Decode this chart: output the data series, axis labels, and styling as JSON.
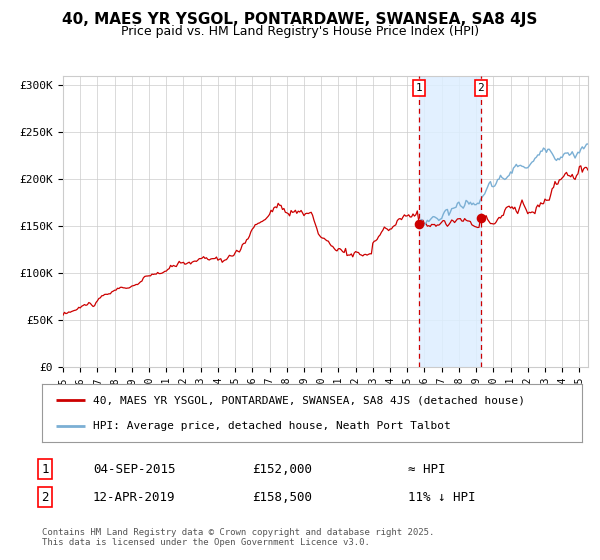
{
  "title": "40, MAES YR YSGOL, PONTARDAWE, SWANSEA, SA8 4JS",
  "subtitle": "Price paid vs. HM Land Registry's House Price Index (HPI)",
  "ylabel_ticks": [
    "£0",
    "£50K",
    "£100K",
    "£150K",
    "£200K",
    "£250K",
    "£300K"
  ],
  "ytick_values": [
    0,
    50000,
    100000,
    150000,
    200000,
    250000,
    300000
  ],
  "ylim": [
    0,
    310000
  ],
  "xlim_start": 1995.0,
  "xlim_end": 2025.5,
  "marker1_x": 2015.67,
  "marker1_y": 152000,
  "marker2_x": 2019.28,
  "marker2_y": 158500,
  "dashed_line1_x": 2015.67,
  "dashed_line2_x": 2019.28,
  "shaded_region_x1": 2015.67,
  "shaded_region_x2": 2019.28,
  "legend_line1": "40, MAES YR YSGOL, PONTARDAWE, SWANSEA, SA8 4JS (detached house)",
  "legend_line2": "HPI: Average price, detached house, Neath Port Talbot",
  "annotation1_date": "04-SEP-2015",
  "annotation1_price": "£152,000",
  "annotation1_hpi": "≈ HPI",
  "annotation2_date": "12-APR-2019",
  "annotation2_price": "£158,500",
  "annotation2_hpi": "11% ↓ HPI",
  "footer": "Contains HM Land Registry data © Crown copyright and database right 2025.\nThis data is licensed under the Open Government Licence v3.0.",
  "red_line_color": "#cc0000",
  "blue_line_color": "#7bafd4",
  "shaded_color": "#ddeeff",
  "background_color": "#ffffff",
  "grid_color": "#cccccc",
  "title_fontsize": 11,
  "subtitle_fontsize": 9
}
